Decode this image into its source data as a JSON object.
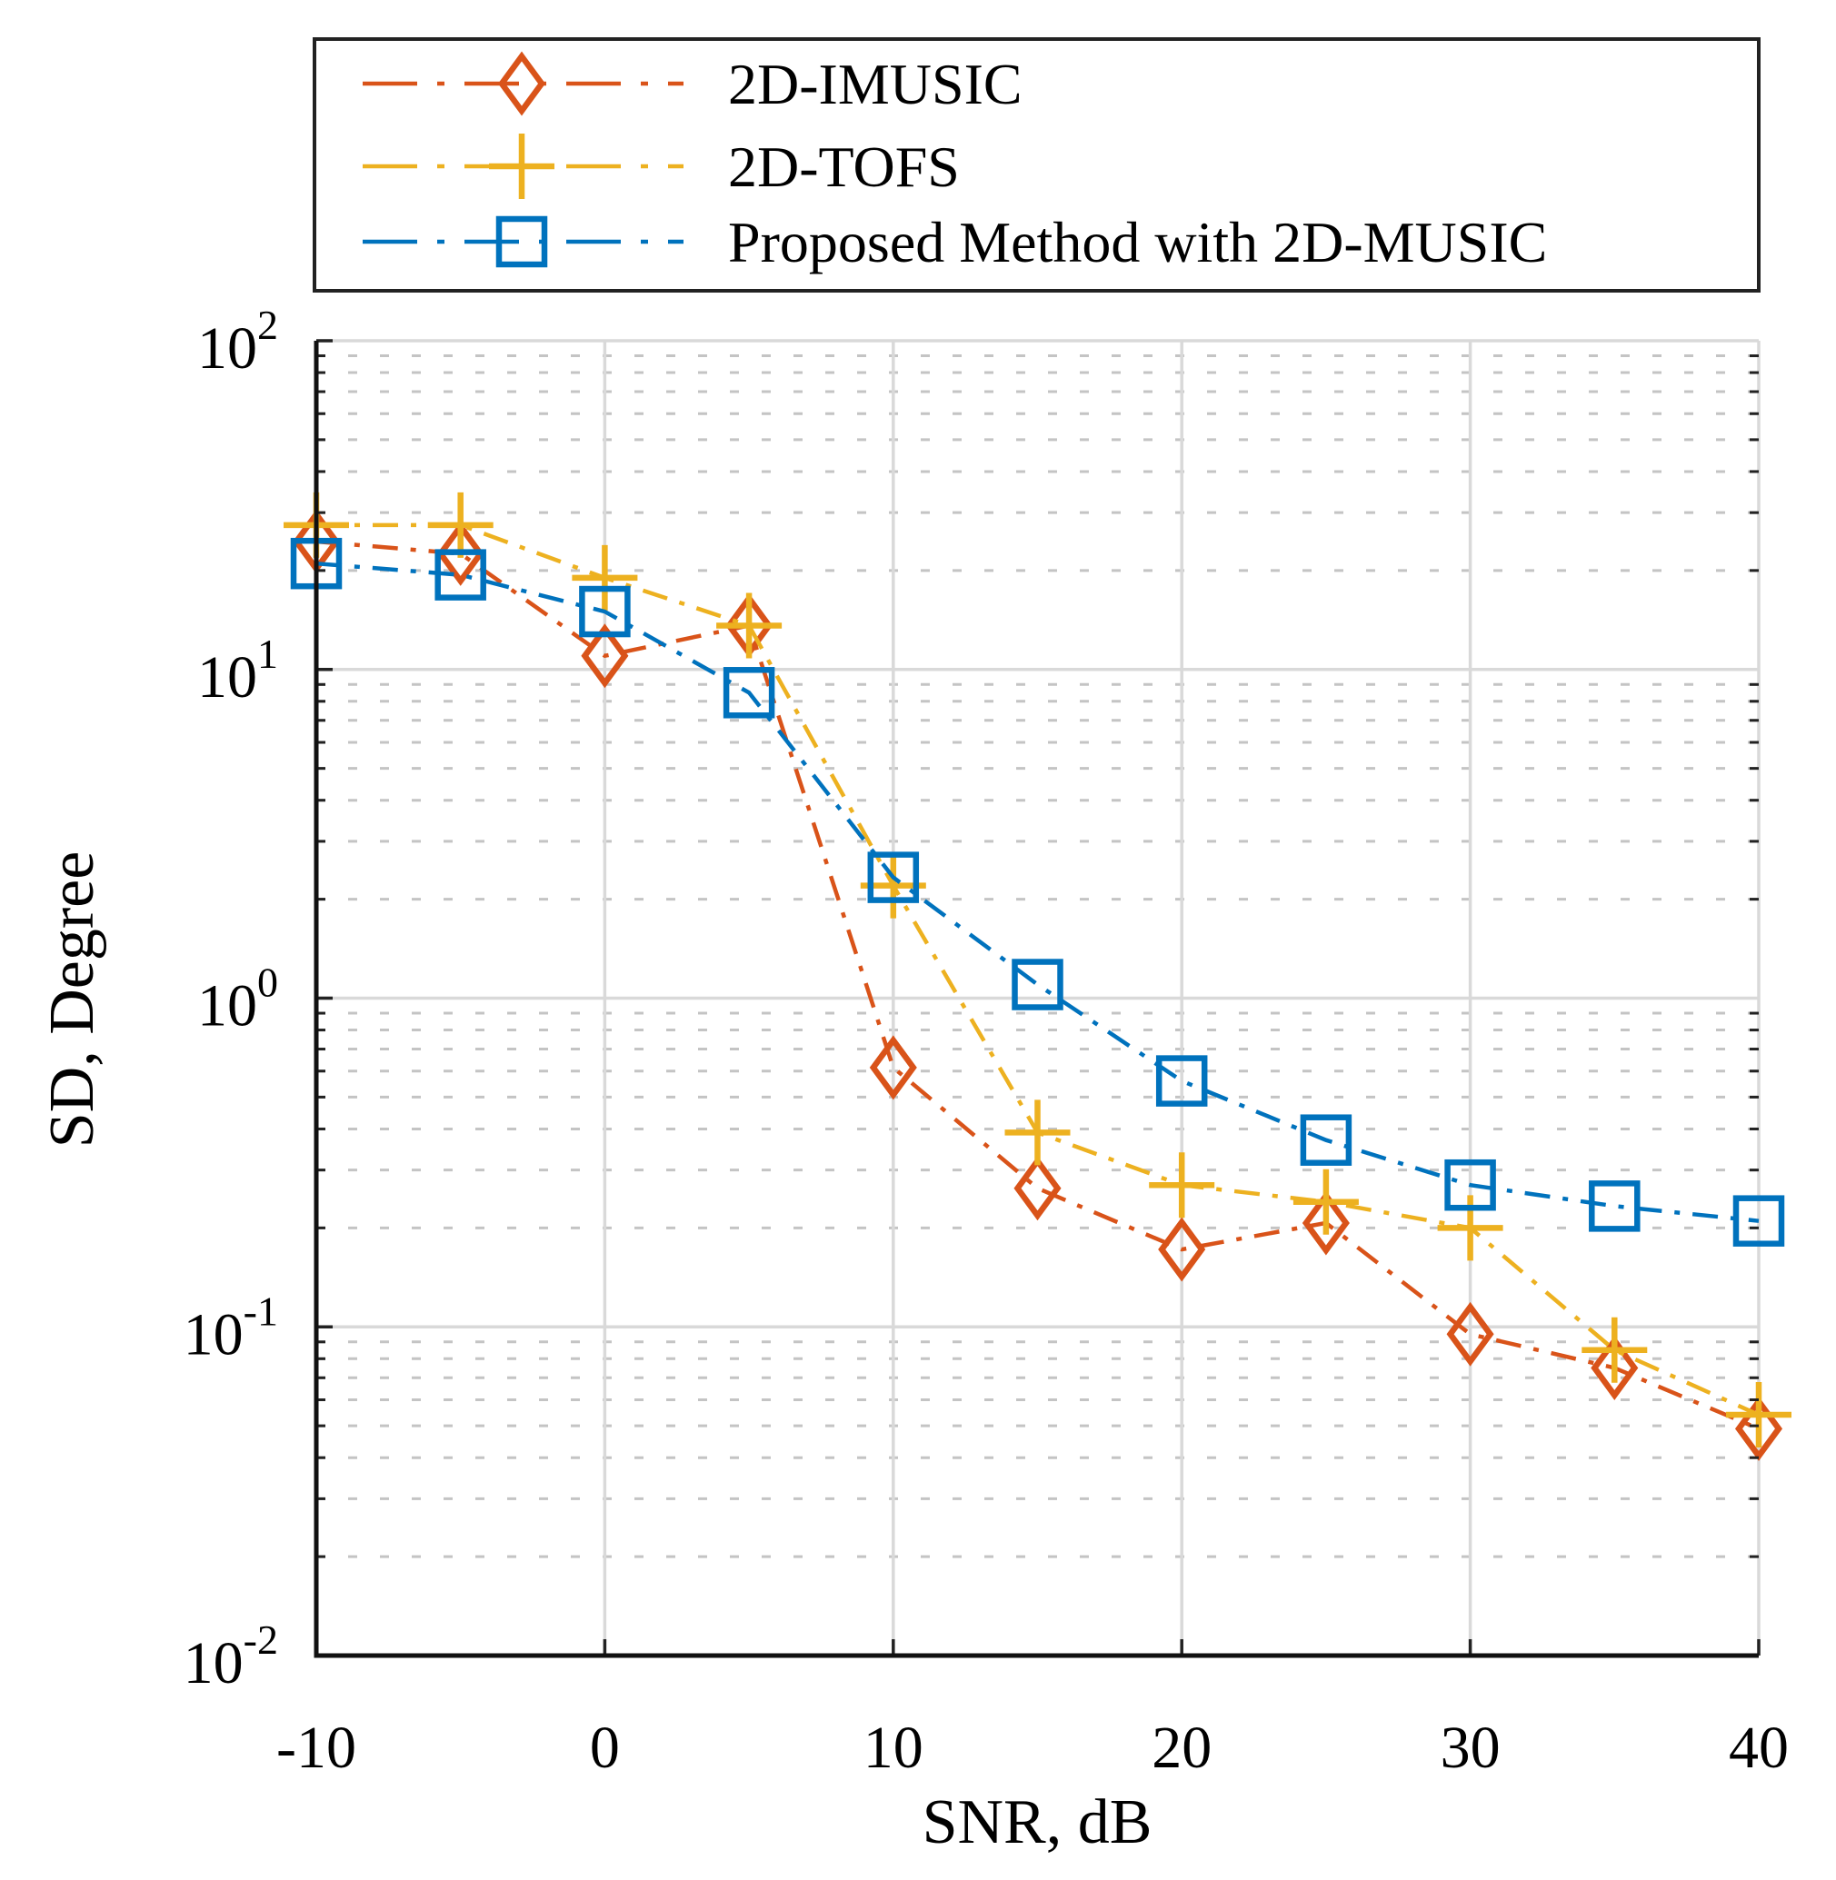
{
  "chart_data": {
    "type": "line",
    "title": "",
    "xlabel": "SNR, dB",
    "ylabel": "SD, Degree",
    "xlim": [
      -10,
      40
    ],
    "ylim": [
      0.01,
      100
    ],
    "yscale": "log",
    "grid": true,
    "legend_placement": "top (outside)",
    "x": [
      -10,
      -5,
      0,
      5,
      10,
      15,
      20,
      25,
      30,
      35,
      40
    ],
    "x_ticks": [
      "-10",
      "0",
      "10",
      "20",
      "30",
      "40"
    ],
    "x_tick_values": [
      -10,
      0,
      10,
      20,
      30,
      40
    ],
    "y_ticks": [
      {
        "base": "10",
        "exp": "-2",
        "value": 0.01
      },
      {
        "base": "10",
        "exp": "-1",
        "value": 0.1
      },
      {
        "base": "10",
        "exp": "0",
        "value": 1
      },
      {
        "base": "10",
        "exp": "1",
        "value": 10
      },
      {
        "base": "10",
        "exp": "2",
        "value": 100
      }
    ],
    "series": [
      {
        "name": "2D-IMUSIC",
        "color": "#D95319",
        "marker": "diamond",
        "values": [
          24.5,
          22.5,
          11,
          13.6,
          0.615,
          0.264,
          0.172,
          0.207,
          0.095,
          0.075,
          0.049
        ]
      },
      {
        "name": "2D-TOFS",
        "color": "#EDB120",
        "marker": "plus",
        "values": [
          27.5,
          27.5,
          19,
          13.6,
          2.2,
          0.39,
          0.27,
          0.24,
          0.2,
          0.085,
          0.054
        ]
      },
      {
        "name": "Proposed Method with 2D-MUSIC",
        "color": "#0072BD",
        "marker": "square",
        "values": [
          21,
          19.4,
          15,
          8.5,
          2.33,
          1.1,
          0.56,
          0.37,
          0.27,
          0.233,
          0.21
        ]
      }
    ]
  }
}
